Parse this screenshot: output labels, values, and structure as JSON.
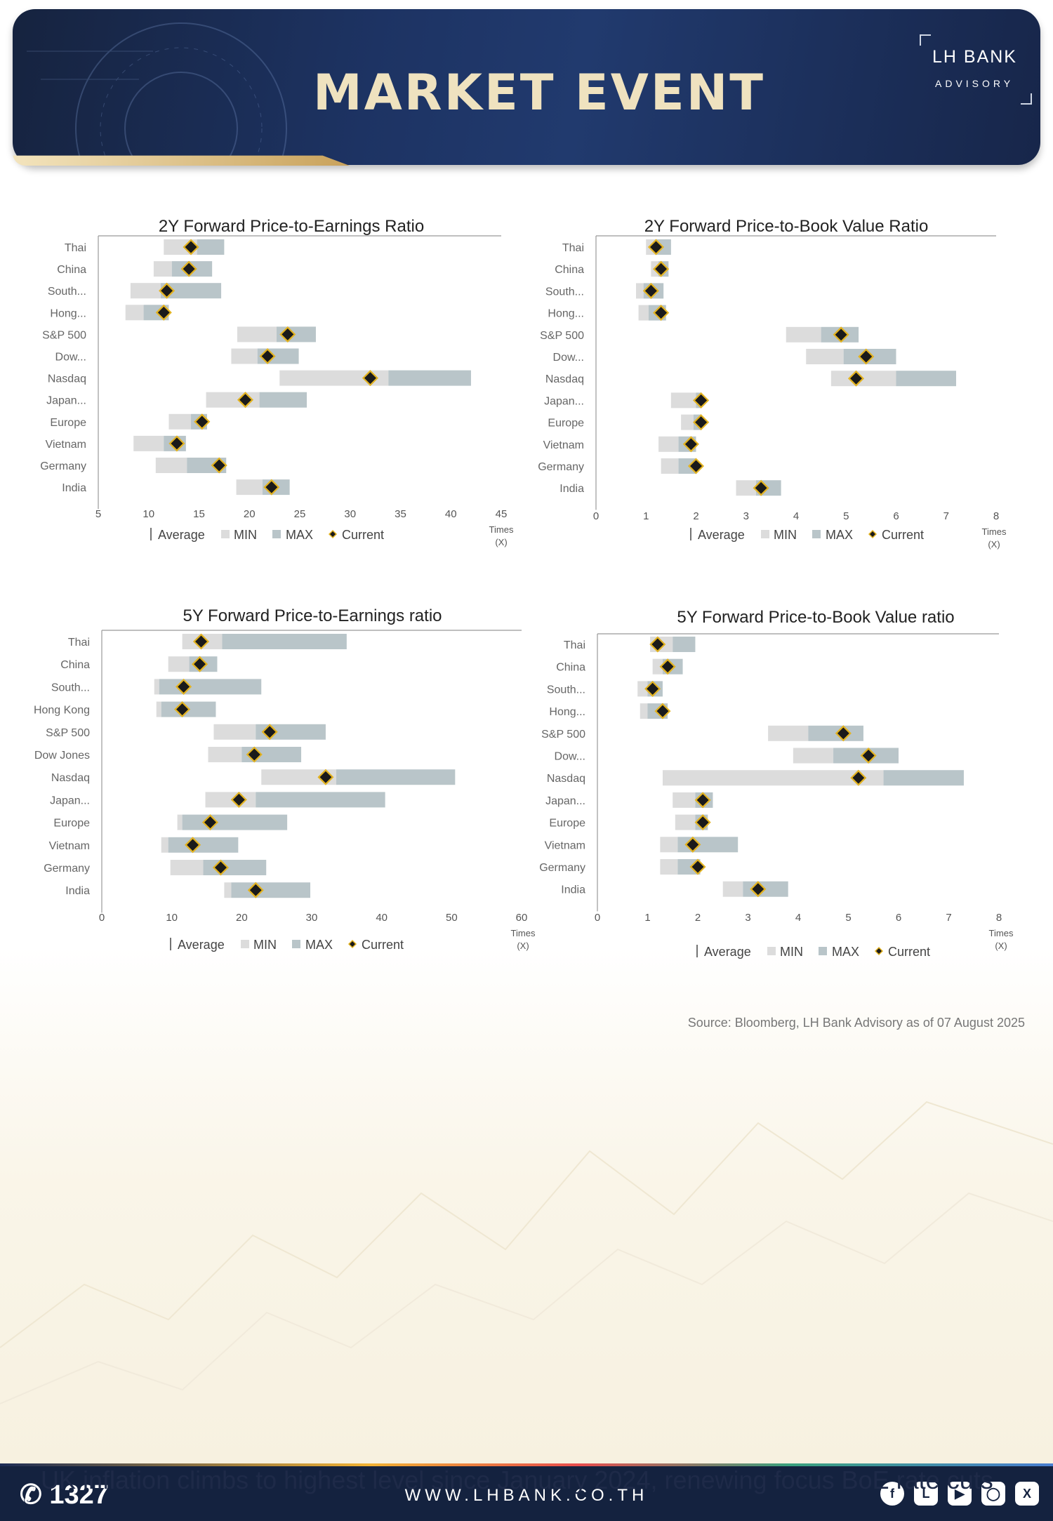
{
  "header": {
    "title": "MARKET EVENT",
    "logo_brand": "LH BANK",
    "logo_sub": "ADVISORY"
  },
  "source_note": "Source: Bloomberg,  LH Bank Advisory  as of 07 August 2025",
  "footer": {
    "phone": "1327",
    "website": "WWW.LHBANK.CO.TH",
    "ticker": "UK inflation climbs to highest level since January 2024, renewing focus BoE rate cuts"
  },
  "social_icons": [
    "facebook-icon",
    "line-icon",
    "youtube-icon",
    "instagram-icon",
    "x-icon"
  ],
  "colors": {
    "header_bg": "#1d3363",
    "title": "#efe2bf",
    "min_bar": "#dcdcdc",
    "max_bar": "#b9c5c9",
    "current_marker": "#1a1a1a",
    "marker_outline": "#e3b321"
  },
  "legend": [
    "Average",
    "MIN",
    "MAX",
    "Current"
  ],
  "chart_data": [
    {
      "type": "bar",
      "title": "2Y Forward Price-to-Earnings Ratio",
      "xlabel": "Times (X)",
      "xlim": [
        5,
        45
      ],
      "xticks": [
        5,
        10,
        15,
        20,
        25,
        30,
        35,
        40,
        45
      ],
      "categories": [
        "Thai",
        "China",
        "South...",
        "Hong...",
        "S&P 500",
        "Dow...",
        "Nasdaq",
        "Japan...",
        "Europe",
        "Vietnam",
        "Germany",
        "India"
      ],
      "min": [
        11.5,
        10.5,
        8.2,
        7.7,
        18.8,
        18.2,
        23.0,
        15.7,
        12.0,
        8.5,
        10.7,
        18.7
      ],
      "average": [
        14.8,
        12.3,
        11.2,
        9.5,
        22.7,
        20.8,
        33.8,
        21.0,
        14.2,
        11.5,
        13.8,
        21.3
      ],
      "max": [
        17.5,
        16.3,
        17.2,
        12.0,
        26.6,
        24.9,
        42.0,
        25.7,
        15.8,
        13.7,
        17.7,
        24.0
      ],
      "current": [
        14.2,
        14.0,
        11.8,
        11.5,
        23.8,
        21.8,
        32.0,
        19.6,
        15.3,
        12.8,
        17.0,
        22.2
      ]
    },
    {
      "type": "bar",
      "title": "2Y Forward Price-to-Book Value Ratio",
      "xlabel": "Times (X)",
      "xlim": [
        0,
        8
      ],
      "xticks": [
        0,
        1,
        2,
        3,
        4,
        5,
        6,
        7,
        8
      ],
      "categories": [
        "Thai",
        "China",
        "South...",
        "Hong...",
        "S&P 500",
        "Dow...",
        "Nasdaq",
        "Japan...",
        "Europe",
        "Vietnam",
        "Germany",
        "India"
      ],
      "min": [
        1.0,
        1.1,
        0.8,
        0.85,
        3.8,
        4.2,
        4.7,
        1.5,
        1.7,
        1.25,
        1.3,
        2.8
      ],
      "average": [
        1.2,
        1.25,
        0.95,
        1.05,
        4.5,
        4.95,
        6.0,
        2.0,
        1.95,
        1.65,
        1.65,
        3.2
      ],
      "max": [
        1.5,
        1.45,
        1.35,
        1.4,
        5.25,
        6.0,
        7.2,
        2.1,
        2.1,
        2.0,
        2.0,
        3.7
      ],
      "current": [
        1.2,
        1.3,
        1.1,
        1.3,
        4.9,
        5.4,
        5.2,
        2.1,
        2.1,
        1.9,
        2.0,
        3.3
      ]
    },
    {
      "type": "bar",
      "title": "5Y Forward Price-to-Earnings ratio",
      "xlabel": "Times (X)",
      "xlim": [
        0,
        60
      ],
      "xticks": [
        0,
        10,
        20,
        30,
        40,
        50,
        60
      ],
      "categories": [
        "Thai",
        "China",
        "South...",
        "Hong Kong",
        "S&P 500",
        "Dow Jones",
        "Nasdaq",
        "Japan...",
        "Europe",
        "Vietnam",
        "Germany",
        "India"
      ],
      "min": [
        11.5,
        9.5,
        7.5,
        7.8,
        16.0,
        15.2,
        22.8,
        14.8,
        10.8,
        8.5,
        9.8,
        17.5
      ],
      "average": [
        17.2,
        12.5,
        8.2,
        8.5,
        22.0,
        20.0,
        33.5,
        22.0,
        11.5,
        9.5,
        14.5,
        18.5
      ],
      "max": [
        35.0,
        16.5,
        22.8,
        16.3,
        32.0,
        28.5,
        50.5,
        40.5,
        26.5,
        19.5,
        23.5,
        29.8
      ],
      "current": [
        14.2,
        14.0,
        11.7,
        11.5,
        24.0,
        21.8,
        32.0,
        19.6,
        15.5,
        13.0,
        17.0,
        22.0
      ]
    },
    {
      "type": "bar",
      "title": "5Y Forward Price-to-Book Value ratio",
      "xlabel": "Times (X)",
      "xlim": [
        0,
        8
      ],
      "xticks": [
        0,
        1,
        2,
        3,
        4,
        5,
        6,
        7,
        8
      ],
      "categories": [
        "Thai",
        "China",
        "South...",
        "Hong...",
        "S&P 500",
        "Dow...",
        "Nasdaq",
        "Japan...",
        "Europe",
        "Vietnam",
        "Germany",
        "India"
      ],
      "min": [
        1.05,
        1.1,
        0.8,
        0.85,
        3.4,
        3.9,
        1.3,
        1.5,
        1.55,
        1.25,
        1.25,
        2.5
      ],
      "average": [
        1.5,
        1.3,
        1.0,
        1.0,
        4.2,
        4.7,
        5.7,
        1.95,
        1.95,
        1.6,
        1.6,
        2.9
      ],
      "max": [
        1.95,
        1.7,
        1.3,
        1.4,
        5.3,
        6.0,
        7.3,
        2.3,
        2.2,
        2.8,
        2.05,
        3.8
      ],
      "current": [
        1.2,
        1.4,
        1.1,
        1.3,
        4.9,
        5.4,
        5.2,
        2.1,
        2.1,
        1.9,
        2.0,
        3.2
      ]
    }
  ]
}
